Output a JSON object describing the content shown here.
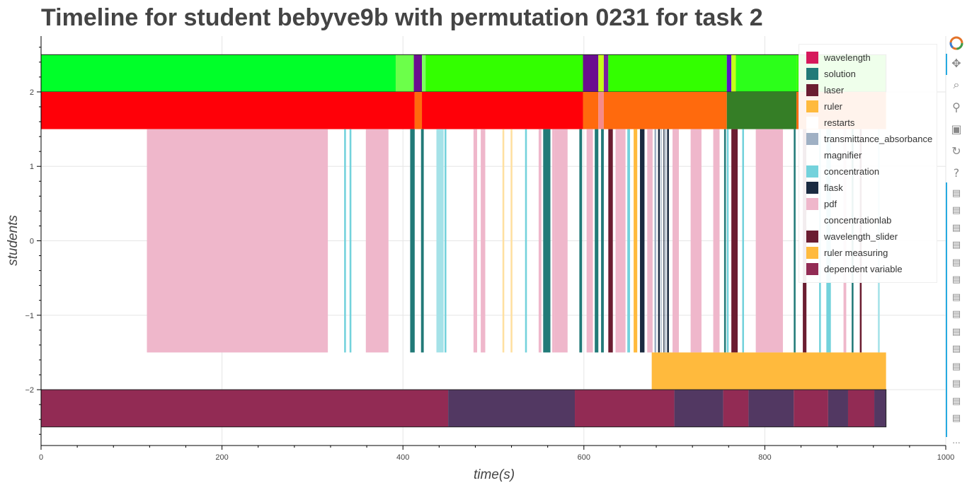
{
  "chart_data": {
    "type": "timeline",
    "title": "Timeline for student bebyve9b with permutation 0231 for task 2",
    "xlabel": "time(s)",
    "ylabel": "students",
    "xlim": [
      0,
      1000
    ],
    "ylim": [
      -2.75,
      2.75
    ],
    "x_ticks": [
      0,
      200,
      400,
      600,
      800,
      1000
    ],
    "y_ticks": [
      -2,
      -1,
      0,
      1,
      2
    ],
    "grid": true,
    "legend_position": "top-right",
    "legend": [
      {
        "name": "wavelength",
        "color": "#d6185b"
      },
      {
        "name": "solution",
        "color": "#217a78"
      },
      {
        "name": "laser",
        "color": "#6b1d31"
      },
      {
        "name": "ruler",
        "color": "#ffba3d"
      },
      {
        "name": "restarts",
        "color": "#ffffff"
      },
      {
        "name": "transmittance_absorbance",
        "color": "#9fb0c4"
      },
      {
        "name": "magnifier",
        "color": "#ffffff"
      },
      {
        "name": "concentration",
        "color": "#73d2dc"
      },
      {
        "name": "flask",
        "color": "#1b2b41"
      },
      {
        "name": "pdf",
        "color": "#efb7cb"
      },
      {
        "name": "concentrationlab",
        "color": "#ffffff"
      },
      {
        "name": "wavelength_slider",
        "color": "#6b1d31"
      },
      {
        "name": "ruler measuring",
        "color": "#ffba3d"
      },
      {
        "name": "dependent variable",
        "color": "#922b54"
      }
    ],
    "rows": [
      {
        "y_range": [
          2,
          2.5
        ],
        "segments": [
          {
            "x0": 0,
            "x1": 392,
            "color": "#00ff29"
          },
          {
            "x0": 392,
            "x1": 412,
            "color": "#6cff4a"
          },
          {
            "x0": 412,
            "x1": 421,
            "color": "#6a0e8f"
          },
          {
            "x0": 421,
            "x1": 425,
            "color": "#7cff60"
          },
          {
            "x0": 425,
            "x1": 599,
            "color": "#33ff00"
          },
          {
            "x0": 599,
            "x1": 616,
            "color": "#6a0e8f"
          },
          {
            "x0": 616,
            "x1": 622,
            "color": "#c3ff1a"
          },
          {
            "x0": 622,
            "x1": 627,
            "color": "#7a1ea0"
          },
          {
            "x0": 627,
            "x1": 758,
            "color": "#33ff00"
          },
          {
            "x0": 758,
            "x1": 763,
            "color": "#5a11c8"
          },
          {
            "x0": 763,
            "x1": 768,
            "color": "#c3ff1a"
          },
          {
            "x0": 768,
            "x1": 835,
            "color": "#2cff1a"
          },
          {
            "x0": 835,
            "x1": 934,
            "color": "#33ff00"
          }
        ]
      },
      {
        "y_range": [
          1.5,
          2
        ],
        "segments": [
          {
            "x0": 0,
            "x1": 413,
            "color": "#ff0008"
          },
          {
            "x0": 413,
            "x1": 421,
            "color": "#ff6a0d"
          },
          {
            "x0": 421,
            "x1": 599,
            "color": "#ff0008"
          },
          {
            "x0": 599,
            "x1": 616,
            "color": "#ff6a0d"
          },
          {
            "x0": 616,
            "x1": 622,
            "color": "#f58a8a"
          },
          {
            "x0": 622,
            "x1": 758,
            "color": "#ff6a0d"
          },
          {
            "x0": 758,
            "x1": 835,
            "color": "#357e26"
          },
          {
            "x0": 835,
            "x1": 934,
            "color": "#ff6a0d"
          }
        ]
      },
      {
        "y_range": [
          -1.5,
          1.5
        ],
        "segments": [
          {
            "x0": 117,
            "x1": 317,
            "color": "#efb7cb"
          },
          {
            "x0": 335,
            "x1": 337,
            "color": "#73d2dc"
          },
          {
            "x0": 341,
            "x1": 343,
            "color": "#73d2dc"
          },
          {
            "x0": 359,
            "x1": 384,
            "color": "#efb7cb"
          },
          {
            "x0": 408,
            "x1": 413,
            "color": "#217a78"
          },
          {
            "x0": 420,
            "x1": 423,
            "color": "#217a78"
          },
          {
            "x0": 437,
            "x1": 445,
            "color": "#a5e2e8"
          },
          {
            "x0": 446,
            "x1": 448,
            "color": "#73d2dc"
          },
          {
            "x0": 478,
            "x1": 482,
            "color": "#efb7cb"
          },
          {
            "x0": 486,
            "x1": 491,
            "color": "#efb7cb"
          },
          {
            "x0": 510,
            "x1": 512,
            "color": "#ffe0a0"
          },
          {
            "x0": 519,
            "x1": 521,
            "color": "#ffe0a0"
          },
          {
            "x0": 535,
            "x1": 537,
            "color": "#73d2dc"
          },
          {
            "x0": 550,
            "x1": 553,
            "color": "#efb7cb"
          },
          {
            "x0": 555,
            "x1": 563,
            "color": "#217a78"
          },
          {
            "x0": 565,
            "x1": 568,
            "color": "#efb7cb"
          },
          {
            "x0": 568,
            "x1": 582,
            "color": "#efb7cb"
          },
          {
            "x0": 595,
            "x1": 598,
            "color": "#217a78"
          },
          {
            "x0": 603,
            "x1": 610,
            "color": "#efb7cb"
          },
          {
            "x0": 612,
            "x1": 616,
            "color": "#217a78"
          },
          {
            "x0": 619,
            "x1": 622,
            "color": "#217a78"
          },
          {
            "x0": 627,
            "x1": 632,
            "color": "#6b1d31"
          },
          {
            "x0": 635,
            "x1": 646,
            "color": "#efb7cb"
          },
          {
            "x0": 648,
            "x1": 651,
            "color": "#73d2dc"
          },
          {
            "x0": 655,
            "x1": 659,
            "color": "#ffba3d"
          },
          {
            "x0": 662,
            "x1": 667,
            "color": "#1b2b41"
          },
          {
            "x0": 670,
            "x1": 676,
            "color": "#efb7cb"
          },
          {
            "x0": 678,
            "x1": 680,
            "color": "#9fb0c4"
          },
          {
            "x0": 682,
            "x1": 684,
            "color": "#1b2b41"
          },
          {
            "x0": 685,
            "x1": 686,
            "color": "#9fb0c4"
          },
          {
            "x0": 688,
            "x1": 689,
            "color": "#1b2b41"
          },
          {
            "x0": 690,
            "x1": 691,
            "color": "#9fb0c4"
          },
          {
            "x0": 692,
            "x1": 694,
            "color": "#1b2b41"
          },
          {
            "x0": 698,
            "x1": 705,
            "color": "#efb7cb"
          },
          {
            "x0": 718,
            "x1": 730,
            "color": "#efb7cb"
          },
          {
            "x0": 743,
            "x1": 750,
            "color": "#efb7cb"
          },
          {
            "x0": 755,
            "x1": 757,
            "color": "#217a78"
          },
          {
            "x0": 758,
            "x1": 760,
            "color": "#73d2dc"
          },
          {
            "x0": 763,
            "x1": 770,
            "color": "#6b1d31"
          },
          {
            "x0": 775,
            "x1": 777,
            "color": "#73d2dc"
          },
          {
            "x0": 790,
            "x1": 820,
            "color": "#efb7cb"
          },
          {
            "x0": 832,
            "x1": 834,
            "color": "#217a78"
          },
          {
            "x0": 842,
            "x1": 846,
            "color": "#6b1d31"
          },
          {
            "x0": 860,
            "x1": 862,
            "color": "#73d2dc"
          },
          {
            "x0": 868,
            "x1": 873,
            "color": "#73d2dc"
          },
          {
            "x0": 887,
            "x1": 890,
            "color": "#efb7cb"
          },
          {
            "x0": 896,
            "x1": 898,
            "color": "#217a78"
          },
          {
            "x0": 905,
            "x1": 907,
            "color": "#6b1d31"
          },
          {
            "x0": 925,
            "x1": 927,
            "color": "#a5e2e8"
          }
        ]
      },
      {
        "y_range": [
          -2,
          -1.5
        ],
        "segments": [
          {
            "x0": 675,
            "x1": 934,
            "color": "#ffba3d"
          }
        ]
      },
      {
        "y_range": [
          -2.5,
          -2
        ],
        "segments": [
          {
            "x0": 0,
            "x1": 450,
            "color": "#922b54"
          },
          {
            "x0": 450,
            "x1": 590,
            "color": "#523862"
          },
          {
            "x0": 590,
            "x1": 700,
            "color": "#922b54"
          },
          {
            "x0": 700,
            "x1": 754,
            "color": "#523862"
          },
          {
            "x0": 754,
            "x1": 782,
            "color": "#922b54"
          },
          {
            "x0": 782,
            "x1": 832,
            "color": "#523862"
          },
          {
            "x0": 832,
            "x1": 870,
            "color": "#922b54"
          },
          {
            "x0": 870,
            "x1": 892,
            "color": "#523862"
          },
          {
            "x0": 892,
            "x1": 921,
            "color": "#922b54"
          },
          {
            "x0": 921,
            "x1": 934,
            "color": "#523862"
          }
        ]
      }
    ]
  },
  "toolbar": {
    "logo_icon": "bokeh-logo-icon",
    "tools": [
      {
        "name": "pan-icon",
        "glyph": "✥"
      },
      {
        "name": "box-zoom-icon",
        "glyph": "⌕"
      },
      {
        "name": "wheel-zoom-icon",
        "glyph": "⚲"
      },
      {
        "name": "save-icon",
        "glyph": "▣"
      },
      {
        "name": "reset-icon",
        "glyph": "↻"
      },
      {
        "name": "help-icon",
        "glyph": "?"
      }
    ],
    "hover_tool_count": 14,
    "hover_glyph": "▤",
    "more_label": "..."
  }
}
